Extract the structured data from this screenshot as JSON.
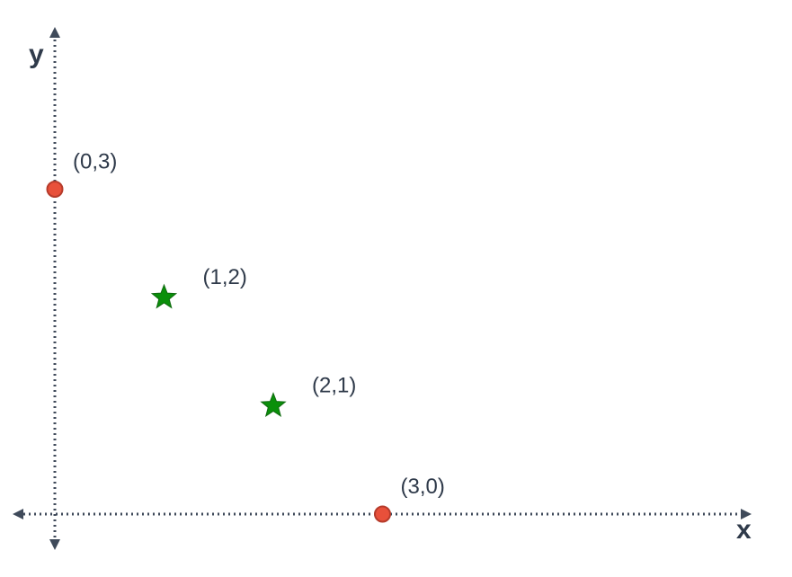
{
  "chart_data": {
    "type": "scatter",
    "title": "",
    "xlabel": "x",
    "ylabel": "y",
    "xlim": [
      0,
      6.5
    ],
    "ylim": [
      0,
      4.3
    ],
    "grid": false,
    "legend": "none",
    "points": [
      {
        "x": 0,
        "y": 3,
        "label": "(0,3)",
        "marker": "circle",
        "color": "#e8503a"
      },
      {
        "x": 1,
        "y": 2,
        "label": "(1,2)",
        "marker": "star",
        "color": "#0a8f0a"
      },
      {
        "x": 2,
        "y": 1,
        "label": "(2,1)",
        "marker": "star",
        "color": "#0a8f0a"
      },
      {
        "x": 3,
        "y": 0,
        "label": "(3,0)",
        "marker": "circle",
        "color": "#e8503a"
      }
    ]
  }
}
